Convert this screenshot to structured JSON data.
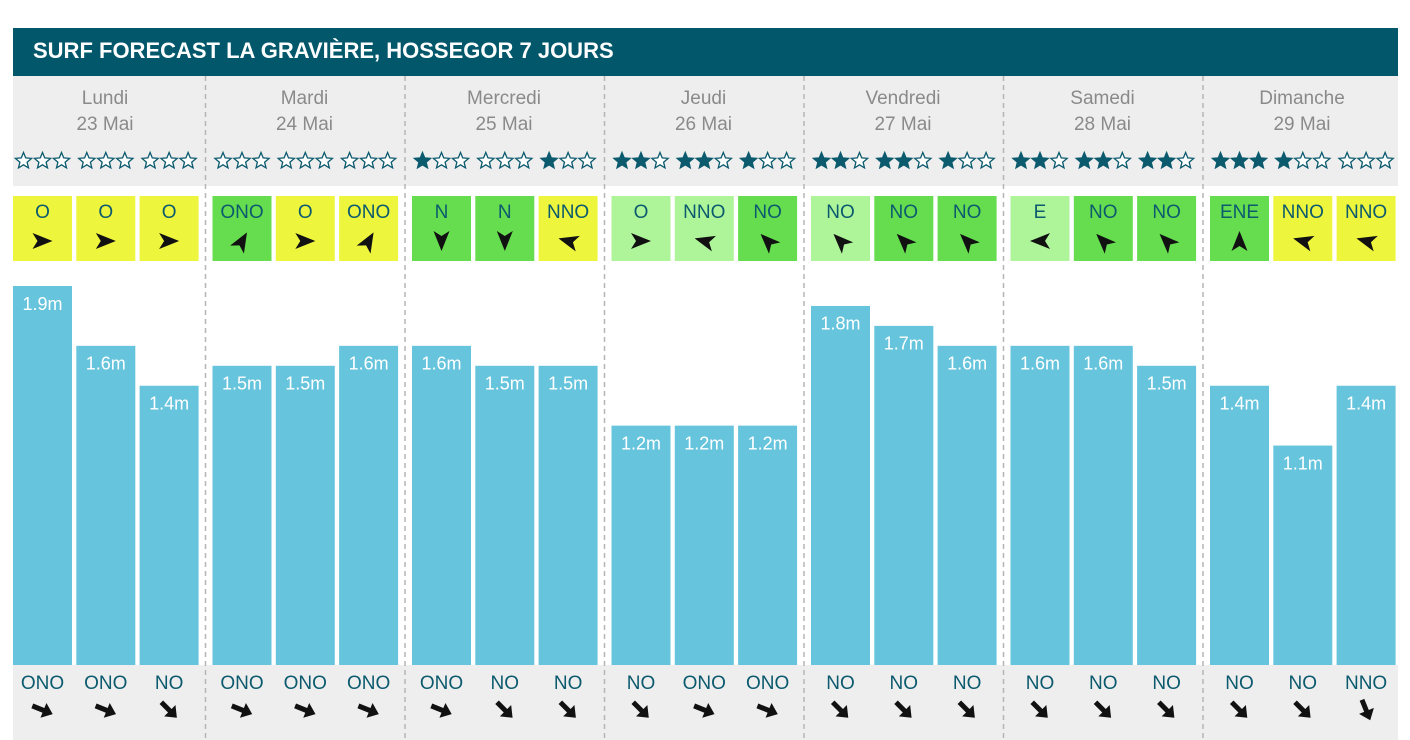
{
  "chart_data": {
    "type": "bar",
    "title": "SURF FORECAST LA GRAVIÈRE, HOSSEGOR 7 JOURS",
    "days": [
      {
        "name": "Lundi",
        "date": "23 Mai"
      },
      {
        "name": "Mardi",
        "date": "24 Mai"
      },
      {
        "name": "Mercredi",
        "date": "25 Mai"
      },
      {
        "name": "Jeudi",
        "date": "26 Mai"
      },
      {
        "name": "Vendredi",
        "date": "27 Mai"
      },
      {
        "name": "Samedi",
        "date": "28 Mai"
      },
      {
        "name": "Dimanche",
        "date": "29 Mai"
      }
    ],
    "values": [
      1.9,
      1.6,
      1.4,
      1.5,
      1.5,
      1.6,
      1.6,
      1.5,
      1.5,
      1.2,
      1.2,
      1.2,
      1.8,
      1.7,
      1.6,
      1.6,
      1.6,
      1.5,
      1.4,
      1.1,
      1.4
    ],
    "value_labels": [
      "1.9m",
      "1.6m",
      "1.4m",
      "1.5m",
      "1.5m",
      "1.6m",
      "1.6m",
      "1.5m",
      "1.5m",
      "1.2m",
      "1.2m",
      "1.2m",
      "1.8m",
      "1.7m",
      "1.6m",
      "1.6m",
      "1.6m",
      "1.5m",
      "1.4m",
      "1.1m",
      "1.4m"
    ],
    "ylim": [
      0,
      1.9
    ],
    "color": "#67c4dd",
    "ratings": [
      0,
      0,
      0,
      0,
      0,
      0,
      1,
      0,
      1,
      2,
      2,
      1,
      2,
      2,
      1,
      2,
      2,
      2,
      3,
      1,
      0
    ],
    "star_color": "#0b5a6e",
    "wind": [
      "O",
      "O",
      "O",
      "ONO",
      "O",
      "ONO",
      "N",
      "N",
      "NNO",
      "O",
      "NNO",
      "NO",
      "NO",
      "NO",
      "NO",
      "E",
      "NO",
      "NO",
      "ENE",
      "NNO",
      "NNO"
    ],
    "wind_colors": [
      "#eef53d",
      "#eef53d",
      "#eef53d",
      "#66dd4f",
      "#eef53d",
      "#eef53d",
      "#66dd4f",
      "#66dd4f",
      "#eef53d",
      "#aef59a",
      "#aef59a",
      "#66dd4f",
      "#aef59a",
      "#66dd4f",
      "#66dd4f",
      "#aef59a",
      "#66dd4f",
      "#66dd4f",
      "#66dd4f",
      "#eef53d",
      "#eef53d"
    ],
    "wind_arrow_deg": [
      0,
      0,
      0,
      -60,
      0,
      -60,
      90,
      90,
      -165,
      0,
      -165,
      -135,
      -135,
      -135,
      -135,
      180,
      -135,
      -135,
      -90,
      -165,
      -165
    ],
    "swell": [
      "ONO",
      "ONO",
      "NO",
      "ONO",
      "ONO",
      "ONO",
      "ONO",
      "NO",
      "NO",
      "NO",
      "ONO",
      "ONO",
      "NO",
      "NO",
      "NO",
      "NO",
      "NO",
      "NO",
      "NO",
      "NO",
      "NNO"
    ],
    "swell_arrow_deg": [
      22,
      22,
      45,
      22,
      22,
      22,
      22,
      45,
      45,
      45,
      22,
      22,
      45,
      45,
      45,
      45,
      45,
      45,
      45,
      45,
      68
    ]
  }
}
